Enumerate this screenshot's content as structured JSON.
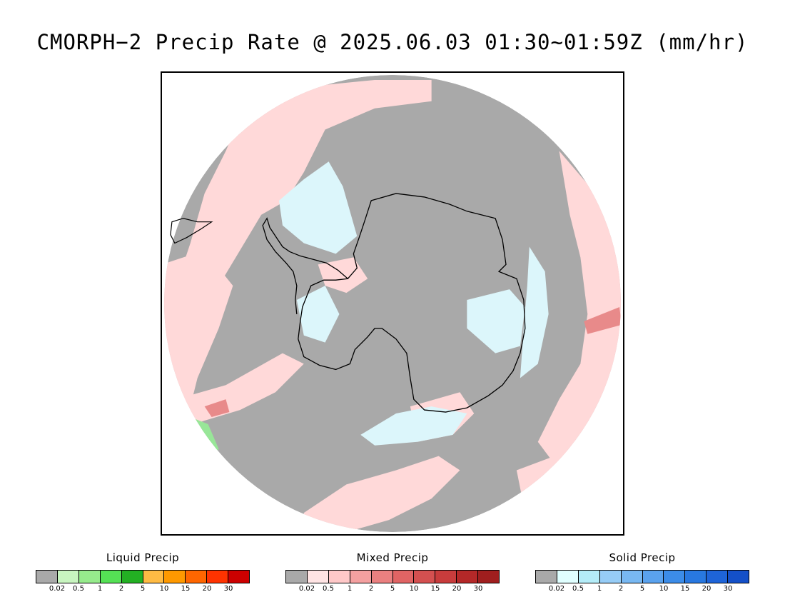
{
  "title": "CMORPH−2 Precip Rate @ 2025.06.03 01:30~01:59Z (mm/hr)",
  "colors": {
    "no_precip": "#a9a9a9",
    "mixed_light": "#ffd9d9",
    "mixed_mid": "#e88a8a",
    "solid_light": "#dcf6fb",
    "liquid_light": "#98e698",
    "coast": "#000000"
  },
  "legends": [
    {
      "key": "liquid",
      "title": "Liquid Precip",
      "colors": [
        "#a9a9a9",
        "#c8f5c0",
        "#96eb8c",
        "#55e055",
        "#23b023",
        "#ffbb44",
        "#ff9900",
        "#ff6600",
        "#ff3300",
        "#cc0000"
      ],
      "ticks": [
        "0.02",
        "0.5",
        "1",
        "2",
        "5",
        "10",
        "15",
        "20",
        "30"
      ]
    },
    {
      "key": "mixed",
      "title": "Mixed Precip",
      "colors": [
        "#a9a9a9",
        "#ffe4e4",
        "#ffc8c8",
        "#f4a0a0",
        "#ea8080",
        "#e06464",
        "#d45050",
        "#c83c3c",
        "#b42828",
        "#a01e1e"
      ],
      "ticks": [
        "0.02",
        "0.5",
        "1",
        "2",
        "5",
        "10",
        "15",
        "20",
        "30"
      ]
    },
    {
      "key": "solid",
      "title": "Solid Precip",
      "colors": [
        "#a9a9a9",
        "#e0ffff",
        "#b4ecf8",
        "#96ccf6",
        "#78b8f2",
        "#5aa2ee",
        "#3c8ce8",
        "#2878e0",
        "#1e64d8",
        "#1450c8"
      ],
      "ticks": [
        "0.02",
        "0.5",
        "1",
        "2",
        "5",
        "10",
        "15",
        "20",
        "30"
      ]
    }
  ]
}
